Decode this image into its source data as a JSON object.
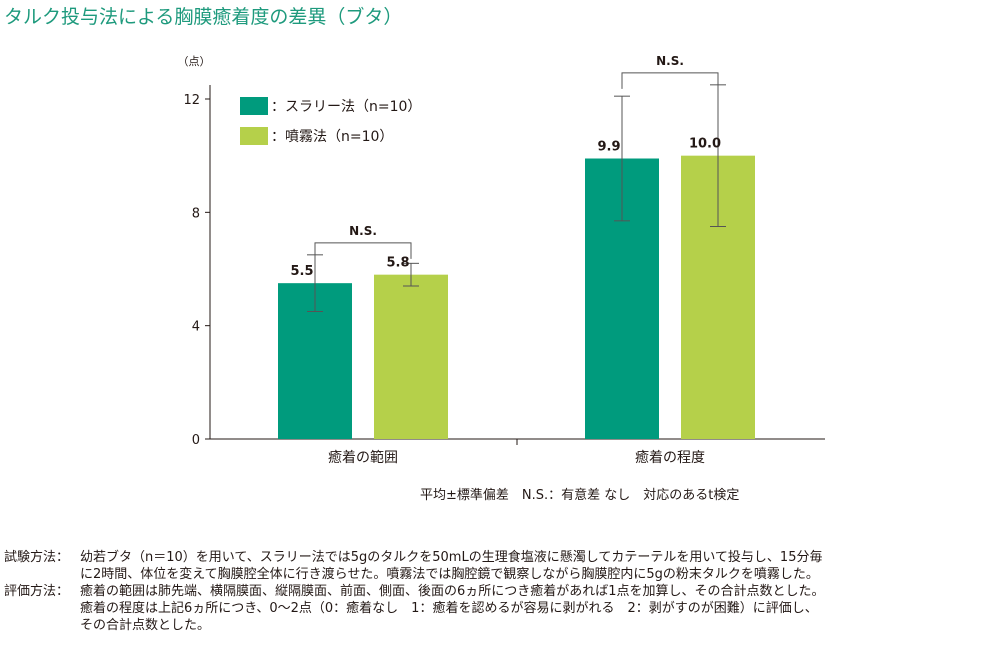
{
  "title": "タルク投与法による胸膜癒着度の差異（ブタ）",
  "chart_data": {
    "type": "bar",
    "y_unit": "（点）",
    "ylim": [
      0,
      12
    ],
    "yticks": [
      0,
      4,
      8,
      12
    ],
    "categories": [
      "癒着の範囲",
      "癒着の程度"
    ],
    "series": [
      {
        "name": "：スラリー法（n=10）",
        "color": "#009b7d",
        "values": [
          5.5,
          9.9
        ],
        "value_labels": [
          "5.5",
          "9.9"
        ],
        "error_low": [
          4.5,
          7.7
        ],
        "error_high": [
          6.5,
          12.1
        ]
      },
      {
        "name": "：噴霧法（n=10）",
        "color": "#b5d04a",
        "values": [
          5.8,
          10.0
        ],
        "value_labels": [
          "5.8",
          "10.0"
        ],
        "error_low": [
          5.4,
          7.5
        ],
        "error_high": [
          6.2,
          12.5
        ]
      }
    ],
    "significance": [
      "N.S.",
      "N.S."
    ],
    "legend_position": "top-left",
    "footnote": "平均±標準偏差　N.S.：有意差 なし　対応のあるt検定"
  },
  "notes": [
    {
      "label": "試験方法：",
      "lines": [
        "幼若ブタ（n＝10）を用いて、スラリー法では5gのタルクを50mLの生理食塩液に懸濁してカテーテルを用いて投与し、15分毎",
        "に2時間、体位を変えて胸膜腔全体に行き渡らせた。噴霧法では胸腔鏡で観察しながら胸膜腔内に5gの粉末タルクを噴霧した。"
      ]
    },
    {
      "label": "評価方法：",
      "lines": [
        "癒着の範囲は肺先端、横隔膜面、縦隔膜面、前面、側面、後面の6ヵ所につき癒着があれば1点を加算し、その合計点数とした。",
        "癒着の程度は上記6ヵ所につき、0〜2点（0：癒着なし　1：癒着を認めるが容易に剥がれる　2：剥がすのが困難）に評価し、",
        "その合計点数とした。"
      ]
    }
  ]
}
